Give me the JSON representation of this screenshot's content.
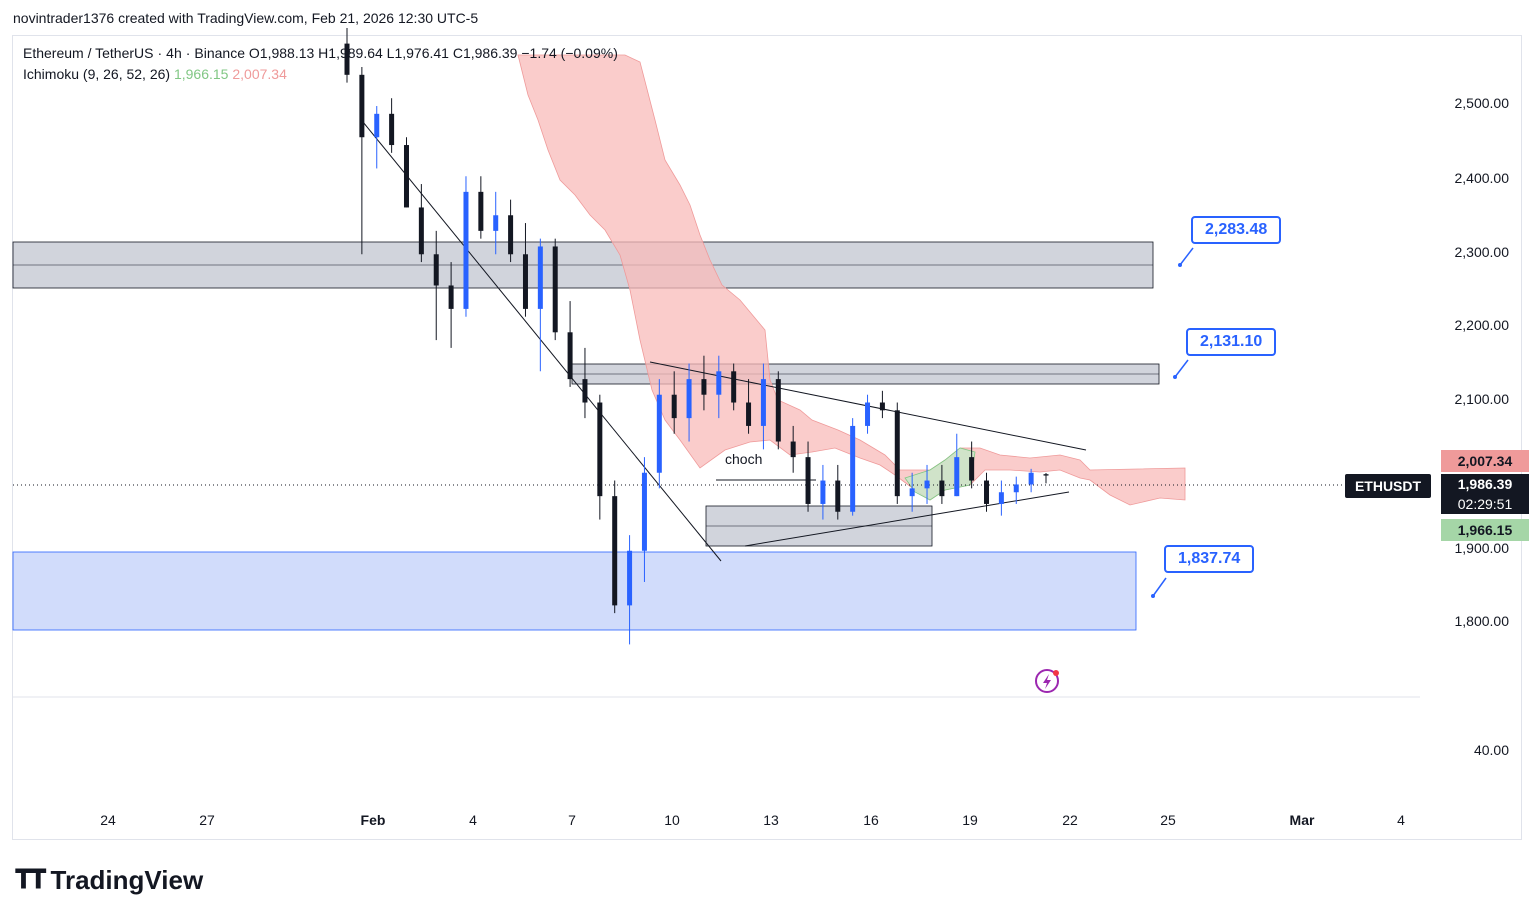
{
  "header": {
    "credit": "novintrader1376 created with TradingView.com, Feb 21, 2026 12:30 UTC-5"
  },
  "legend": {
    "symbol": "Ethereum / TetherUS",
    "interval": "4h",
    "exchange": "Binance",
    "open": "O1,988.13",
    "high": "H1,989.64",
    "low": "L1,976.41",
    "close": "C1,986.39",
    "change": "−1.74 (−0.09%)",
    "indicator_name": "Ichimoku (9, 26, 52, 26)",
    "indicator_val1": "1,966.15",
    "indicator_val2": "2,007.34"
  },
  "annotations": {
    "tag_2283": "2,283.48",
    "tag_2131": "2,131.10",
    "tag_1837": "1,837.74",
    "choch": "choch"
  },
  "axis": {
    "y_labels": [
      "2,500.00",
      "2,400.00",
      "2,300.00",
      "2,200.00",
      "2,100.00",
      "1,900.00",
      "1,800.00",
      "40.00"
    ],
    "x_labels": [
      "24",
      "27",
      "Feb",
      "4",
      "7",
      "10",
      "13",
      "16",
      "19",
      "22",
      "25",
      "Mar",
      "4"
    ],
    "ichimoku_upper": "2,007.34",
    "ticker": "ETHUSDT",
    "last_price": "1,986.39",
    "countdown": "02:29:51",
    "ichimoku_lower": "1,966.15"
  },
  "colors": {
    "bull": "#2962ff",
    "bear": "#131722",
    "cloud_bear": "#f8bbb9",
    "cloud_bull": "#c8e6c9",
    "zone_gray": "#d1d4dc",
    "zone_blue": "#d1dcfb",
    "tag_blue": "#2962ff"
  },
  "footer": {
    "brand": "TradingView"
  },
  "chart_data": {
    "type": "candlestick",
    "title": "Ethereum / TetherUS · 4h · Binance",
    "ylim": [
      1750,
      2560
    ],
    "x_labels": [
      "24",
      "27",
      "Feb",
      "4",
      "7",
      "10",
      "13",
      "16",
      "19",
      "22",
      "25",
      "Mar",
      "4"
    ],
    "ohlc": [
      [
        2540,
        2560,
        2490,
        2500
      ],
      [
        2500,
        2510,
        2270,
        2420
      ],
      [
        2420,
        2460,
        2380,
        2450
      ],
      [
        2450,
        2470,
        2400,
        2410
      ],
      [
        2410,
        2420,
        2330,
        2330
      ],
      [
        2330,
        2360,
        2260,
        2270
      ],
      [
        2270,
        2300,
        2160,
        2230
      ],
      [
        2230,
        2260,
        2150,
        2200
      ],
      [
        2200,
        2370,
        2190,
        2350
      ],
      [
        2350,
        2370,
        2290,
        2300
      ],
      [
        2300,
        2350,
        2270,
        2320
      ],
      [
        2320,
        2340,
        2260,
        2270
      ],
      [
        2270,
        2310,
        2190,
        2200
      ],
      [
        2200,
        2290,
        2120,
        2280
      ],
      [
        2280,
        2290,
        2160,
        2170
      ],
      [
        2170,
        2210,
        2100,
        2110
      ],
      [
        2110,
        2150,
        2060,
        2080
      ],
      [
        2080,
        2090,
        1930,
        1960
      ],
      [
        1960,
        1980,
        1810,
        1820
      ],
      [
        1820,
        1910,
        1770,
        1890
      ],
      [
        1890,
        2010,
        1850,
        1990
      ],
      [
        1990,
        2110,
        1970,
        2090
      ],
      [
        2090,
        2120,
        2040,
        2060
      ],
      [
        2060,
        2130,
        2030,
        2110
      ],
      [
        2110,
        2140,
        2070,
        2090
      ],
      [
        2090,
        2140,
        2060,
        2120
      ],
      [
        2120,
        2130,
        2070,
        2080
      ],
      [
        2080,
        2110,
        2040,
        2050
      ],
      [
        2050,
        2130,
        2020,
        2110
      ],
      [
        2110,
        2120,
        2020,
        2030
      ],
      [
        2030,
        2050,
        1990,
        2010
      ],
      [
        2010,
        2030,
        1940,
        1950
      ],
      [
        1950,
        2000,
        1930,
        1980
      ],
      [
        1980,
        2000,
        1930,
        1940
      ],
      [
        1940,
        2060,
        1935,
        2050
      ],
      [
        2050,
        2090,
        2040,
        2080
      ],
      [
        2080,
        2095,
        2060,
        2070
      ],
      [
        2070,
        2080,
        1950,
        1960
      ],
      [
        1960,
        1990,
        1940,
        1970
      ],
      [
        1970,
        2000,
        1950,
        1980
      ],
      [
        1980,
        2000,
        1950,
        1960
      ],
      [
        1960,
        2040,
        1960,
        2010
      ],
      [
        2010,
        2030,
        1970,
        1980
      ],
      [
        1980,
        1990,
        1940,
        1950
      ],
      [
        1950,
        1980,
        1935,
        1965
      ],
      [
        1965,
        1985,
        1950,
        1975
      ],
      [
        1975,
        1995,
        1965,
        1990
      ],
      [
        1988.13,
        1989.64,
        1976.41,
        1986.39
      ]
    ],
    "ichimoku": {
      "params": [
        9,
        26,
        52,
        26
      ],
      "span_a": 1966.15,
      "span_b": 2007.34
    },
    "levels": [
      2283.48,
      2131.1,
      1837.74
    ],
    "zones": [
      {
        "kind": "supply",
        "from": 2250,
        "to": 2310
      },
      {
        "kind": "supply",
        "from": 2120,
        "to": 2145
      },
      {
        "kind": "demand",
        "from": 1790,
        "to": 1895
      },
      {
        "kind": "range",
        "from": 1900,
        "to": 1955
      }
    ],
    "last_price": 1986.39
  }
}
